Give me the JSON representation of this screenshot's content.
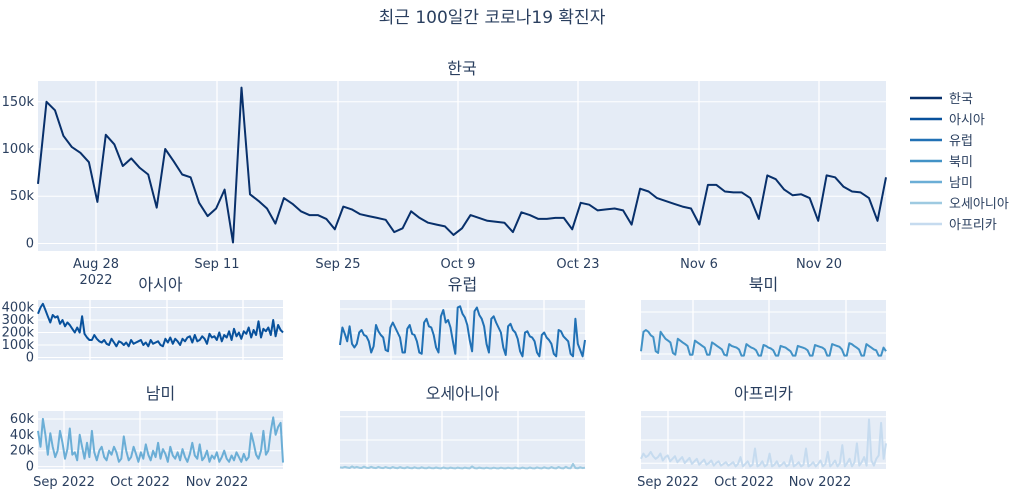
{
  "title": "최근 100일간 코로나19 확진자",
  "chart_data": [
    {
      "type": "line",
      "panel": "korea",
      "title": "한국",
      "x_ticks": [
        "Aug 28\n2022",
        "Sep 11",
        "Sep 25",
        "Oct 9",
        "Oct 23",
        "Nov 6",
        "Nov 20"
      ],
      "y_ticks": [
        "0",
        "50k",
        "100k",
        "150k"
      ],
      "ylim": [
        -8000,
        172000
      ],
      "grid": true,
      "series": [
        {
          "name": "한국",
          "color": "#08306b",
          "values": [
            63000,
            150000,
            141000,
            114000,
            102000,
            96000,
            86000,
            44000,
            115000,
            105000,
            82000,
            90000,
            80000,
            73000,
            38000,
            100000,
            87000,
            73000,
            70000,
            43000,
            29000,
            37000,
            57000,
            1000,
            165000,
            52000,
            45000,
            37000,
            21000,
            48000,
            42000,
            34000,
            30000,
            30000,
            26000,
            15000,
            39000,
            36000,
            31000,
            29000,
            27000,
            25000,
            12000,
            16000,
            34000,
            27000,
            22000,
            20000,
            18000,
            9000,
            16000,
            30000,
            27000,
            24000,
            23000,
            22000,
            12000,
            33000,
            30000,
            26000,
            26000,
            27000,
            27000,
            15000,
            43000,
            41000,
            35000,
            36000,
            37000,
            35000,
            20000,
            58000,
            55000,
            48000,
            45000,
            42000,
            39000,
            37000,
            20000,
            62000,
            62000,
            55000,
            54000,
            54000,
            48000,
            26000,
            72000,
            68000,
            57000,
            51000,
            52000,
            48000,
            24000,
            72000,
            70000,
            60000,
            55000,
            54000,
            48000,
            24000,
            70000
          ]
        }
      ]
    },
    {
      "type": "line",
      "panel": "asia",
      "title": "아시아",
      "y_ticks": [
        "0",
        "100k",
        "200k",
        "300k",
        "400k"
      ],
      "ylim": [
        -20000,
        460000
      ],
      "grid": true,
      "series": [
        {
          "name": "아시아",
          "color": "#08519c",
          "values": [
            350000,
            400000,
            430000,
            380000,
            330000,
            280000,
            340000,
            320000,
            330000,
            270000,
            300000,
            250000,
            280000,
            260000,
            230000,
            200000,
            240000,
            200000,
            330000,
            190000,
            160000,
            140000,
            140000,
            180000,
            150000,
            130000,
            120000,
            140000,
            110000,
            100000,
            150000,
            120000,
            90000,
            130000,
            120000,
            100000,
            120000,
            90000,
            140000,
            110000,
            120000,
            130000,
            140000,
            100000,
            120000,
            90000,
            140000,
            110000,
            120000,
            130000,
            100000,
            90000,
            150000,
            120000,
            160000,
            110000,
            150000,
            130000,
            100000,
            150000,
            130000,
            160000,
            170000,
            120000,
            180000,
            130000,
            140000,
            170000,
            150000,
            110000,
            190000,
            160000,
            170000,
            140000,
            200000,
            130000,
            180000,
            160000,
            210000,
            140000,
            230000,
            170000,
            200000,
            150000,
            210000,
            190000,
            240000,
            160000,
            220000,
            180000,
            290000,
            160000,
            230000,
            210000,
            240000,
            180000,
            300000,
            170000,
            260000,
            220000,
            200000
          ]
        }
      ]
    },
    {
      "type": "line",
      "panel": "europe",
      "title": "유럽",
      "ylim": [
        0,
        480000
      ],
      "grid": true,
      "series": [
        {
          "name": "유럽",
          "color": "#2171b5",
          "values": [
            120000,
            260000,
            210000,
            150000,
            270000,
            130000,
            100000,
            130000,
            220000,
            240000,
            200000,
            190000,
            150000,
            60000,
            110000,
            280000,
            230000,
            200000,
            180000,
            80000,
            70000,
            260000,
            300000,
            260000,
            220000,
            180000,
            60000,
            60000,
            250000,
            280000,
            210000,
            200000,
            150000,
            60000,
            50000,
            300000,
            330000,
            270000,
            260000,
            200000,
            100000,
            60000,
            350000,
            400000,
            300000,
            320000,
            260000,
            150000,
            50000,
            420000,
            430000,
            370000,
            340000,
            280000,
            160000,
            70000,
            390000,
            420000,
            360000,
            330000,
            270000,
            130000,
            60000,
            330000,
            350000,
            300000,
            260000,
            220000,
            100000,
            40000,
            270000,
            290000,
            240000,
            220000,
            170000,
            70000,
            30000,
            220000,
            230000,
            190000,
            180000,
            150000,
            60000,
            30000,
            200000,
            220000,
            180000,
            160000,
            130000,
            50000,
            30000,
            240000,
            230000,
            190000,
            170000,
            150000,
            50000,
            30000,
            330000,
            130000,
            80000,
            30000,
            160000
          ]
        }
      ]
    },
    {
      "type": "line",
      "panel": "north-america",
      "title": "북미",
      "ylim": [
        -10000,
        330000
      ],
      "grid": true,
      "series": [
        {
          "name": "북미",
          "color": "#4292c6",
          "values": [
            40000,
            150000,
            160000,
            150000,
            130000,
            120000,
            40000,
            30000,
            150000,
            130000,
            110000,
            100000,
            90000,
            30000,
            20000,
            110000,
            100000,
            90000,
            80000,
            70000,
            20000,
            20000,
            100000,
            90000,
            80000,
            70000,
            60000,
            20000,
            20000,
            90000,
            80000,
            70000,
            60000,
            50000,
            20000,
            15000,
            80000,
            70000,
            65000,
            60000,
            50000,
            15000,
            15000,
            80000,
            70000,
            60000,
            55000,
            45000,
            15000,
            15000,
            75000,
            70000,
            60000,
            55000,
            45000,
            15000,
            15000,
            70000,
            65000,
            60000,
            50000,
            40000,
            15000,
            15000,
            70000,
            65000,
            60000,
            55000,
            45000,
            15000,
            15000,
            75000,
            70000,
            65000,
            60000,
            50000,
            15000,
            15000,
            80000,
            75000,
            70000,
            65000,
            50000,
            15000,
            15000,
            85000,
            80000,
            70000,
            60000,
            50000,
            15000,
            15000,
            80000,
            70000,
            60000,
            50000,
            45000,
            15000,
            15000,
            60000,
            40000
          ]
        }
      ]
    },
    {
      "type": "line",
      "panel": "south-america",
      "title": "남미",
      "x_ticks": [
        "Sep 2022",
        "Oct 2022",
        "Nov 2022"
      ],
      "y_ticks": [
        "0",
        "20k",
        "40k",
        "60k"
      ],
      "ylim": [
        -3000,
        70000
      ],
      "grid": true,
      "series": [
        {
          "name": "남미",
          "color": "#6baed6",
          "values": [
            45000,
            25000,
            60000,
            40000,
            15000,
            42000,
            25000,
            12000,
            20000,
            45000,
            30000,
            10000,
            22000,
            48000,
            15000,
            18000,
            8000,
            40000,
            25000,
            10000,
            30000,
            12000,
            45000,
            18000,
            8000,
            20000,
            25000,
            12000,
            8000,
            20000,
            15000,
            25000,
            18000,
            6000,
            10000,
            38000,
            20000,
            8000,
            12000,
            25000,
            16000,
            6000,
            18000,
            10000,
            28000,
            15000,
            8000,
            20000,
            12000,
            30000,
            10000,
            22000,
            16000,
            6000,
            25000,
            14000,
            10000,
            18000,
            8000,
            22000,
            12000,
            6000,
            16000,
            30000,
            14000,
            10000,
            28000,
            8000,
            12000,
            20000,
            6000,
            14000,
            10000,
            18000,
            6000,
            12000,
            20000,
            10000,
            6000,
            14000,
            8000,
            18000,
            12000,
            6000,
            16000,
            8000,
            12000,
            42000,
            30000,
            15000,
            10000,
            20000,
            45000,
            15000,
            20000,
            45000,
            62000,
            40000,
            50000,
            55000,
            5000
          ]
        }
      ]
    },
    {
      "type": "line",
      "panel": "oceania",
      "title": "오세아니아",
      "ylim": [
        0,
        68000
      ],
      "grid": true,
      "series": [
        {
          "name": "오세아니아",
          "color": "#9ecae1",
          "values": [
            2000,
            1500,
            2500,
            1800,
            1200,
            3000,
            1500,
            2500,
            1500,
            1200,
            2800,
            1500,
            1200,
            2600,
            1400,
            1100,
            2500,
            1400,
            1000,
            2400,
            1300,
            900,
            2300,
            1300,
            900,
            2200,
            1200,
            900,
            2100,
            1200,
            800,
            2000,
            1100,
            800,
            2000,
            1100,
            800,
            1900,
            1000,
            800,
            1800,
            1000,
            700,
            1800,
            1000,
            700,
            1700,
            1000,
            700,
            1600,
            1000,
            700,
            1700,
            1000,
            700,
            3000,
            1000,
            700,
            1600,
            1000,
            700,
            1500,
            900,
            700,
            1500,
            900,
            700,
            1500,
            900,
            700,
            1500,
            900,
            700,
            1600,
            900,
            700,
            1700,
            900,
            700,
            1800,
            900,
            700,
            1900,
            1000,
            700,
            2000,
            1000,
            700,
            2200,
            1000,
            700,
            2400,
            1000,
            700,
            2600,
            1100,
            800,
            6000,
            1200,
            800,
            2000,
            1000,
            1500
          ]
        }
      ]
    },
    {
      "type": "line",
      "panel": "africa",
      "title": "아프리카",
      "x_ticks": [
        "Sep 2022",
        "Oct 2022",
        "Nov 2022"
      ],
      "ylim": [
        0,
        68000
      ],
      "grid": true,
      "series": [
        {
          "name": "아프리카",
          "color": "#c6dbef",
          "values": [
            12000,
            18000,
            14000,
            16000,
            20000,
            15000,
            12000,
            14000,
            18000,
            10000,
            14000,
            16000,
            9000,
            12000,
            15000,
            8000,
            11000,
            14000,
            7000,
            10000,
            13000,
            6000,
            9000,
            12000,
            5000,
            8000,
            11000,
            5000,
            7000,
            10000,
            4000,
            7000,
            9000,
            4000,
            6000,
            8000,
            4000,
            6000,
            8000,
            3000,
            6000,
            14000,
            3000,
            6000,
            9000,
            3000,
            5000,
            24000,
            3000,
            5000,
            9000,
            3000,
            5000,
            18000,
            3000,
            5000,
            9000,
            3000,
            5000,
            8000,
            3000,
            5000,
            16000,
            3000,
            5000,
            8000,
            3000,
            5000,
            24000,
            3000,
            5000,
            8000,
            3000,
            6000,
            10000,
            3000,
            6000,
            20000,
            3000,
            6000,
            10000,
            3000,
            7000,
            28000,
            3000,
            7000,
            12000,
            3000,
            8000,
            30000,
            4000,
            8000,
            14000,
            4000,
            58000,
            10000,
            4000,
            12000,
            16000,
            54000,
            12000,
            30000
          ]
        }
      ]
    }
  ]
}
